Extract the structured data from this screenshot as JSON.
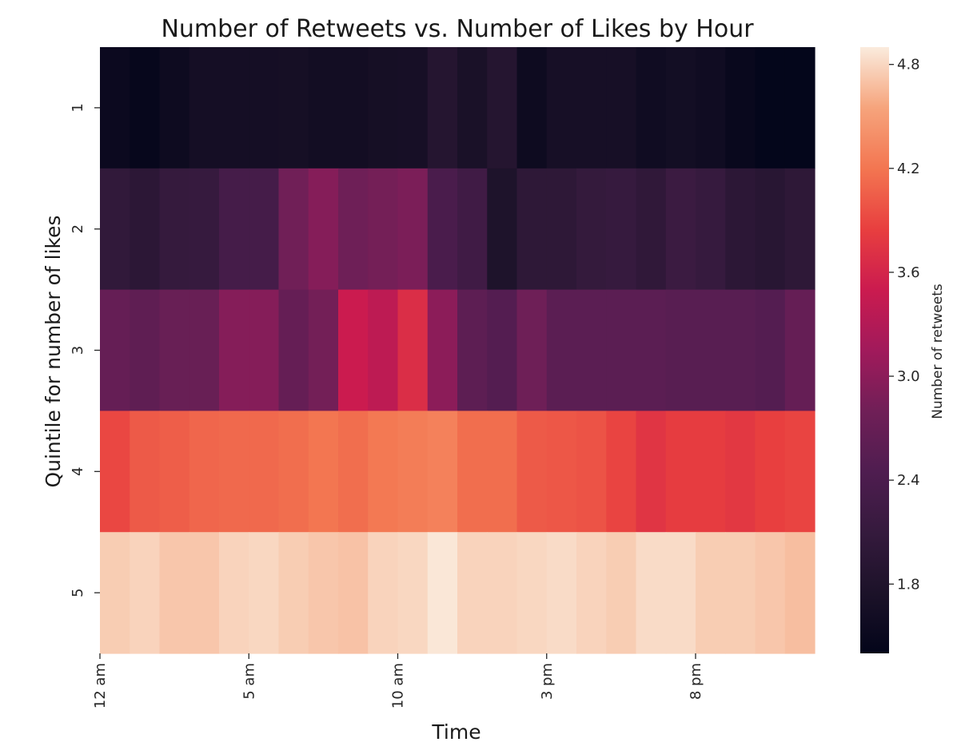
{
  "chart_data": {
    "type": "heatmap",
    "title": "Number of Retweets vs. Number of Likes by Hour",
    "xlabel": "Time",
    "ylabel": "Quintile for number of likes",
    "x_categories": [
      "0",
      "1",
      "2",
      "3",
      "4",
      "5",
      "6",
      "7",
      "8",
      "9",
      "10",
      "11",
      "12",
      "13",
      "14",
      "15",
      "16",
      "17",
      "18",
      "19",
      "20",
      "21",
      "22",
      "23"
    ],
    "x_tick_labels": [
      {
        "index": 0,
        "label": "12 am"
      },
      {
        "index": 5,
        "label": "5 am"
      },
      {
        "index": 10,
        "label": "10 am"
      },
      {
        "index": 15,
        "label": "3 pm"
      },
      {
        "index": 20,
        "label": "8 pm"
      }
    ],
    "y_categories": [
      "1",
      "2",
      "3",
      "4",
      "5"
    ],
    "values": [
      [
        1.52,
        1.45,
        1.55,
        1.65,
        1.65,
        1.65,
        1.66,
        1.62,
        1.62,
        1.66,
        1.68,
        1.88,
        1.72,
        1.88,
        1.55,
        1.68,
        1.68,
        1.68,
        1.58,
        1.63,
        1.58,
        1.48,
        1.42,
        1.42
      ],
      [
        2.05,
        1.98,
        2.1,
        2.12,
        2.32,
        2.32,
        2.8,
        2.95,
        2.78,
        2.83,
        2.88,
        2.38,
        2.25,
        1.78,
        2.0,
        2.0,
        2.08,
        2.12,
        2.03,
        2.18,
        2.12,
        1.98,
        1.92,
        2.0
      ],
      [
        2.68,
        2.62,
        2.72,
        2.72,
        2.95,
        2.95,
        2.68,
        2.82,
        3.5,
        3.38,
        3.68,
        3.0,
        2.6,
        2.5,
        2.78,
        2.58,
        2.58,
        2.58,
        2.58,
        2.55,
        2.55,
        2.55,
        2.5,
        2.68
      ],
      [
        3.9,
        4.02,
        4.05,
        4.1,
        4.12,
        4.12,
        4.15,
        4.2,
        4.15,
        4.22,
        4.25,
        4.28,
        4.15,
        4.15,
        4.02,
        4.0,
        3.98,
        3.88,
        3.75,
        3.82,
        3.82,
        3.78,
        3.85,
        3.88
      ],
      [
        4.75,
        4.78,
        4.72,
        4.72,
        4.78,
        4.8,
        4.75,
        4.72,
        4.7,
        4.78,
        4.8,
        4.88,
        4.78,
        4.78,
        4.8,
        4.82,
        4.78,
        4.75,
        4.82,
        4.82,
        4.75,
        4.75,
        4.72,
        4.68
      ]
    ],
    "colorbar": {
      "label": "Number of retweets",
      "range": [
        1.4,
        4.9
      ],
      "ticks": [
        1.8,
        2.4,
        3.0,
        3.6,
        4.2,
        4.8
      ],
      "tick_labels": [
        "1.8",
        "2.4",
        "3.0",
        "3.6",
        "4.2",
        "4.8"
      ],
      "colormap": "rocket",
      "colormap_stops": [
        {
          "t": 0.0,
          "color": "#03051a"
        },
        {
          "t": 0.1,
          "color": "#1c1229"
        },
        {
          "t": 0.2,
          "color": "#351a3d"
        },
        {
          "t": 0.3,
          "color": "#4f1d50"
        },
        {
          "t": 0.4,
          "color": "#701f57"
        },
        {
          "t": 0.5,
          "color": "#a11a5b"
        },
        {
          "t": 0.6,
          "color": "#cb1b4f"
        },
        {
          "t": 0.7,
          "color": "#e83f3f"
        },
        {
          "t": 0.8,
          "color": "#f37651"
        },
        {
          "t": 0.9,
          "color": "#f6a47c"
        },
        {
          "t": 1.0,
          "color": "#faebdd"
        }
      ]
    }
  }
}
